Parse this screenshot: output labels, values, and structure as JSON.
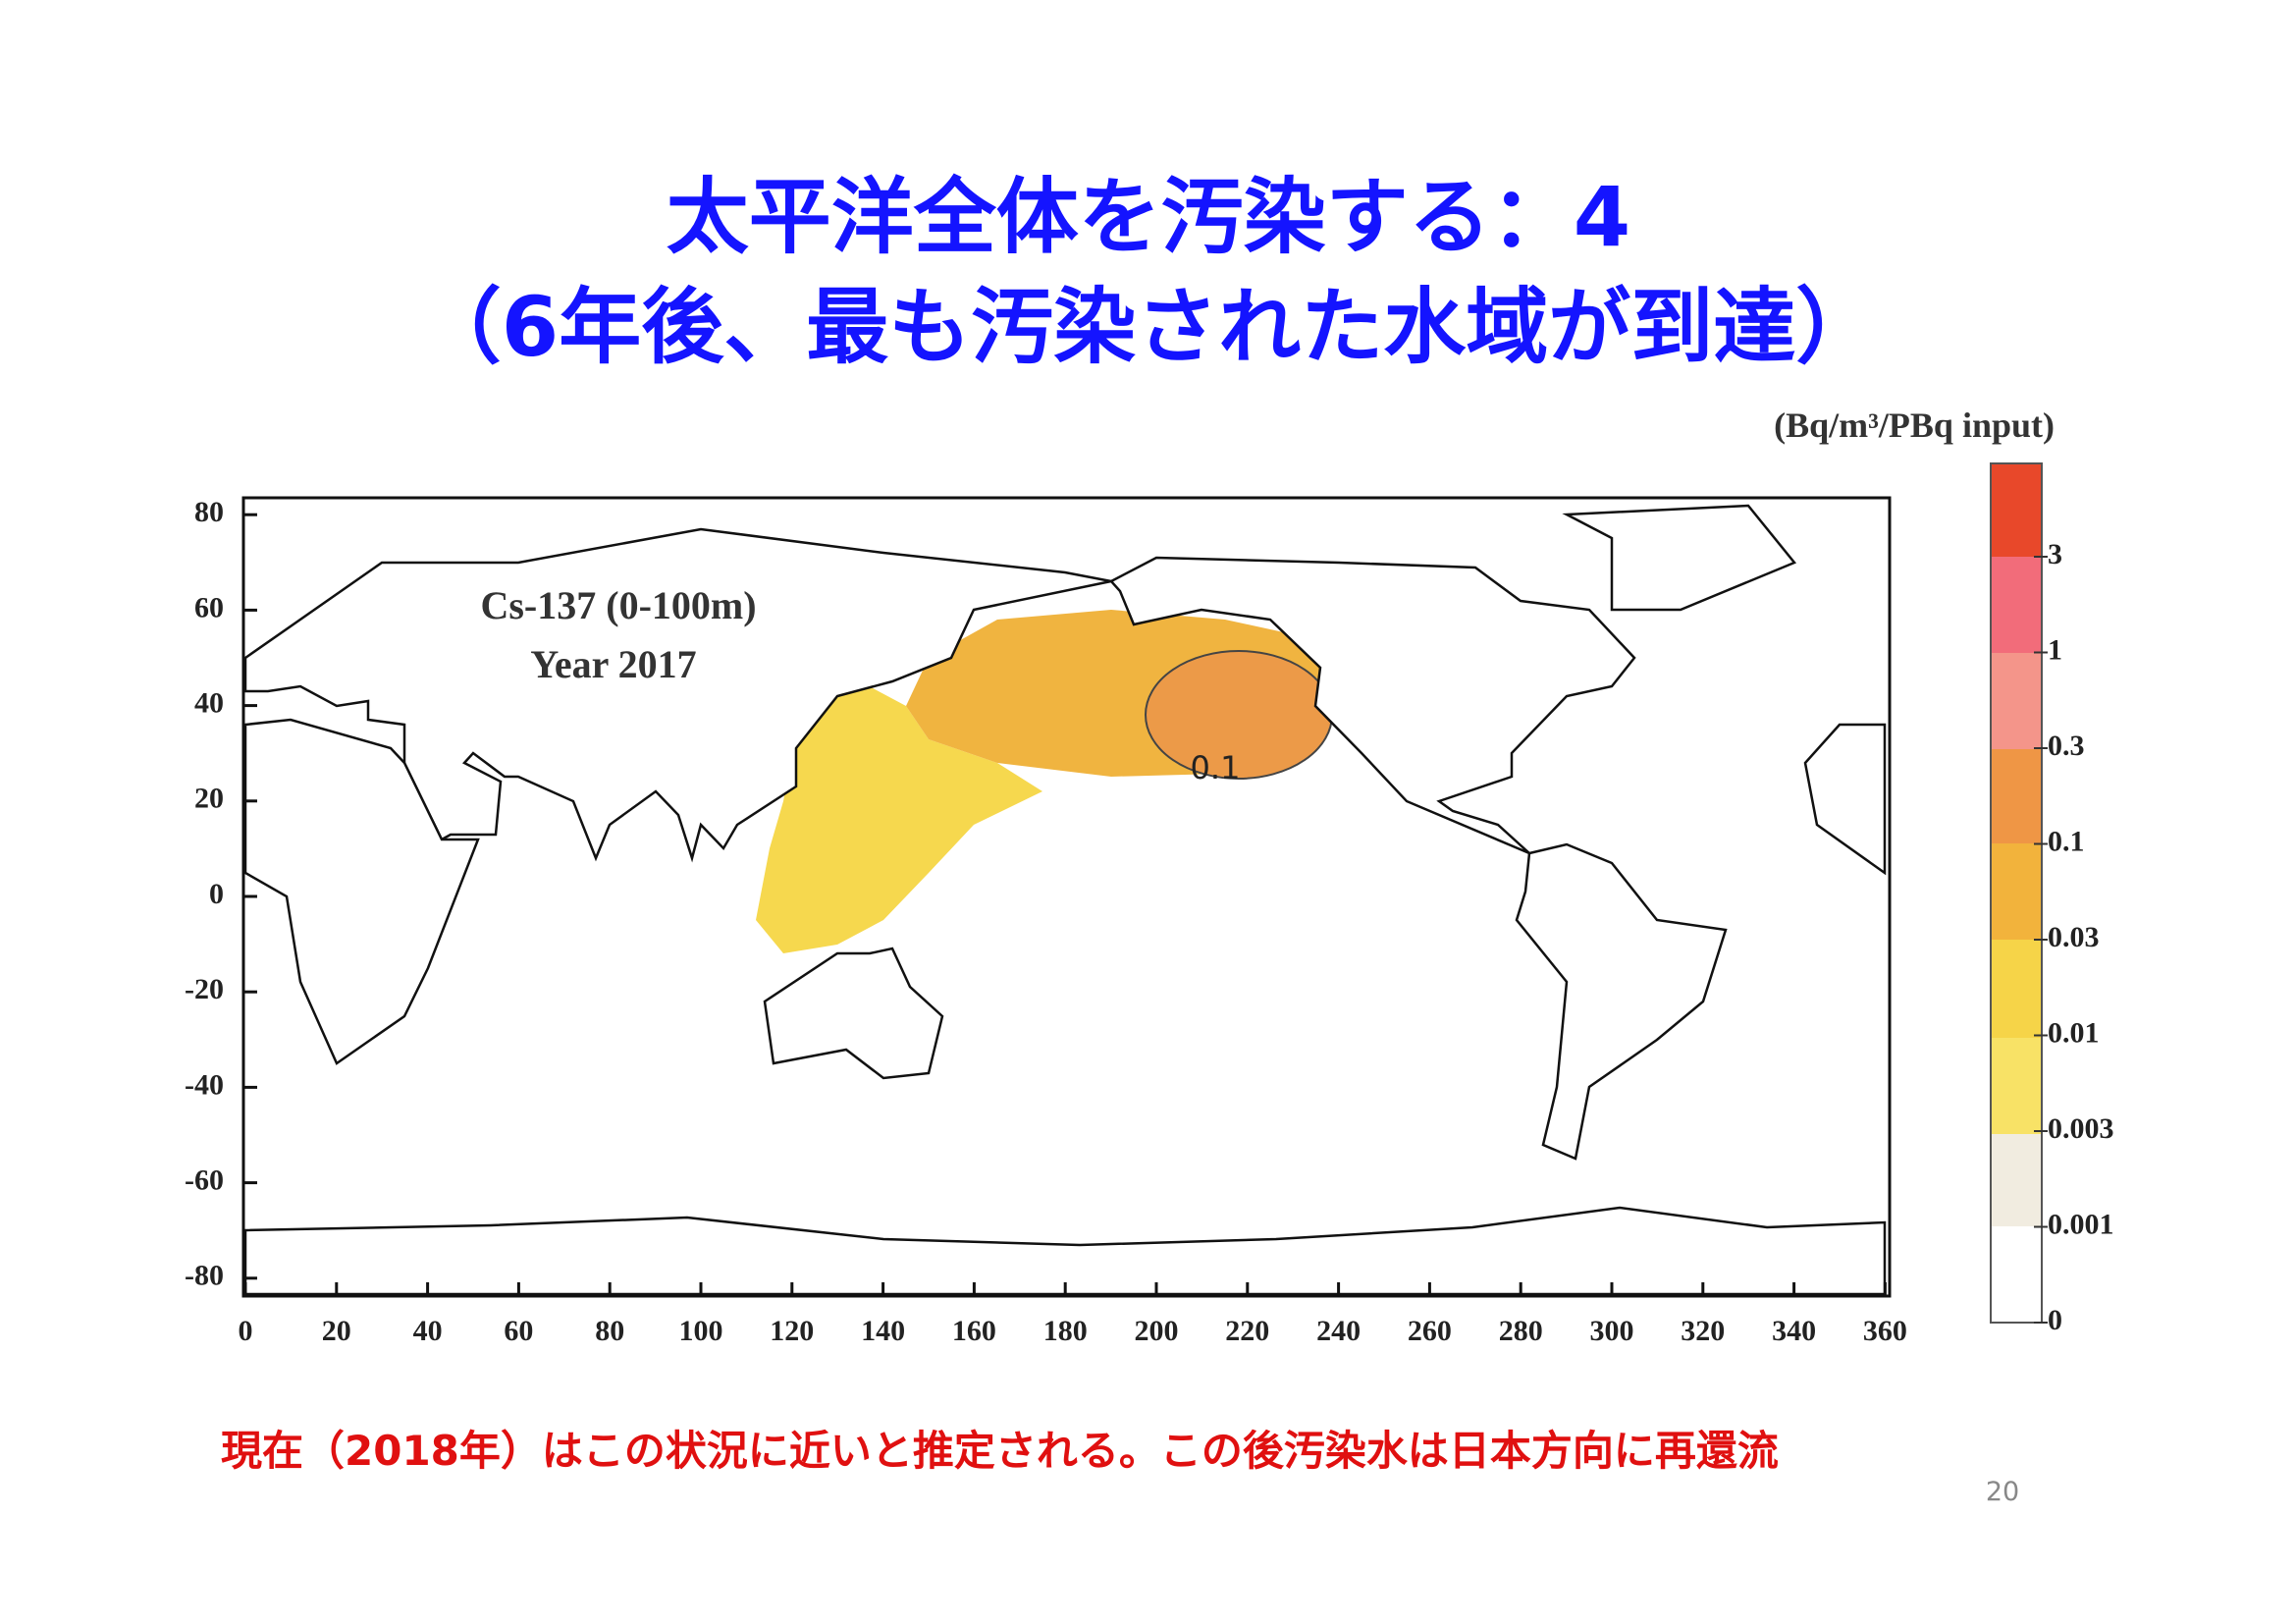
{
  "header": {
    "title_line1": "太平洋全体を汚染する：4",
    "title_line2": "（6年後、最も汚染された水域が到達）"
  },
  "figure": {
    "unit_label": "(Bq/m³/PBq input)",
    "annotation_line1": "Cs-137 (0-100m)",
    "annotation_line2": "Year 2017",
    "contour_label": "0.1",
    "y_ticks": [
      80,
      60,
      40,
      20,
      0,
      -20,
      -40,
      -60,
      -80
    ],
    "x_ticks": [
      0,
      20,
      40,
      60,
      80,
      100,
      120,
      140,
      160,
      180,
      200,
      220,
      240,
      260,
      280,
      300,
      320,
      340,
      360
    ],
    "colorbar_labels": [
      3,
      1,
      0.3,
      0.1,
      0.03,
      0.01,
      0.003,
      0.001,
      0
    ]
  },
  "footer": {
    "note": "現在（2018年）はこの状況に近いと推定される。この後汚染水は日本方向に再還流",
    "page_number": "20"
  }
}
